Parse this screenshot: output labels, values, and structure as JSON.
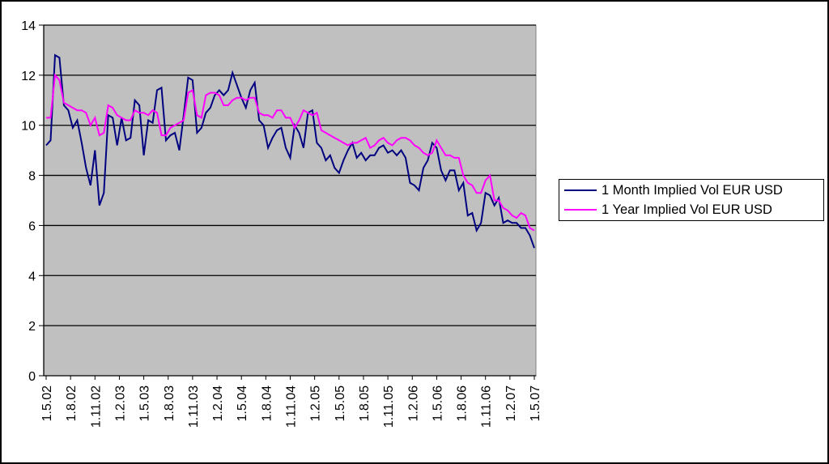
{
  "chart_data": {
    "type": "line",
    "title": "",
    "xlabel": "",
    "ylabel": "",
    "ylim": [
      0,
      14
    ],
    "yticks": [
      0,
      2,
      4,
      6,
      8,
      10,
      12,
      14
    ],
    "x_tick_labels": [
      "1.5.02",
      "1.8.02",
      "1.11.02",
      "1.2.03",
      "1.5.03",
      "1.8.03",
      "1.11.03",
      "1.2.04",
      "1.5.04",
      "1.8.04",
      "1.11.04",
      "1.2.05",
      "1.5.05",
      "1.8.05",
      "1.11.05",
      "1.2.06",
      "1.5.06",
      "1.8.06",
      "1.11.06",
      "1.2.07",
      "1.5.07"
    ],
    "grid": "horizontal",
    "legend_position": "right",
    "plot_background": "#c0c0c0",
    "series": [
      {
        "name": "1 Month Implied Vol EUR USD",
        "color": "#000080",
        "values": [
          9.2,
          9.4,
          12.8,
          12.7,
          10.8,
          10.6,
          9.9,
          10.2,
          9.3,
          8.3,
          7.6,
          9.0,
          6.8,
          7.3,
          10.4,
          10.3,
          9.2,
          10.3,
          9.4,
          9.5,
          11.0,
          10.8,
          8.8,
          10.2,
          10.1,
          11.4,
          11.5,
          9.4,
          9.6,
          9.7,
          9.0,
          10.4,
          11.9,
          11.8,
          9.7,
          9.9,
          10.5,
          10.7,
          11.2,
          11.4,
          11.2,
          11.4,
          12.1,
          11.6,
          11.1,
          10.7,
          11.4,
          11.7,
          10.2,
          10.0,
          9.1,
          9.5,
          9.8,
          9.9,
          9.1,
          8.7,
          10.0,
          9.7,
          9.1,
          10.5,
          10.6,
          9.3,
          9.1,
          8.6,
          8.8,
          8.3,
          8.1,
          8.6,
          9.0,
          9.3,
          8.7,
          8.9,
          8.6,
          8.8,
          8.8,
          9.1,
          9.2,
          8.9,
          9.0,
          8.8,
          9.0,
          8.7,
          7.7,
          7.6,
          7.4,
          8.3,
          8.6,
          9.3,
          9.1,
          8.2,
          7.8,
          8.2,
          8.2,
          7.4,
          7.7,
          6.4,
          6.5,
          5.8,
          6.1,
          7.3,
          7.2,
          6.8,
          7.1,
          6.1,
          6.2,
          6.1,
          6.1,
          5.9,
          5.9,
          5.6,
          5.1
        ]
      },
      {
        "name": "1 Year Implied Vol EUR USD",
        "color": "#ff00ff",
        "values": [
          10.3,
          10.3,
          12.0,
          11.8,
          10.9,
          10.8,
          10.7,
          10.6,
          10.6,
          10.5,
          10.0,
          10.3,
          9.6,
          9.7,
          10.8,
          10.7,
          10.4,
          10.3,
          10.2,
          10.2,
          10.6,
          10.5,
          10.5,
          10.4,
          10.6,
          10.5,
          9.6,
          9.6,
          9.9,
          10.0,
          10.1,
          10.2,
          11.3,
          11.4,
          10.4,
          10.3,
          11.2,
          11.3,
          11.3,
          11.2,
          10.8,
          10.8,
          11.0,
          11.1,
          11.1,
          11.0,
          11.1,
          11.1,
          10.5,
          10.4,
          10.4,
          10.3,
          10.6,
          10.6,
          10.3,
          10.3,
          9.9,
          10.2,
          10.6,
          10.5,
          10.4,
          10.5,
          9.8,
          9.7,
          9.6,
          9.5,
          9.4,
          9.3,
          9.2,
          9.3,
          9.3,
          9.4,
          9.5,
          9.1,
          9.2,
          9.4,
          9.5,
          9.3,
          9.2,
          9.4,
          9.5,
          9.5,
          9.4,
          9.2,
          9.1,
          8.9,
          8.8,
          8.9,
          9.4,
          9.1,
          8.8,
          8.8,
          8.7,
          8.7,
          8.0,
          7.7,
          7.6,
          7.3,
          7.3,
          7.8,
          8.0,
          7.0,
          7.0,
          6.7,
          6.6,
          6.4,
          6.3,
          6.5,
          6.4,
          5.9,
          5.8
        ]
      }
    ]
  }
}
